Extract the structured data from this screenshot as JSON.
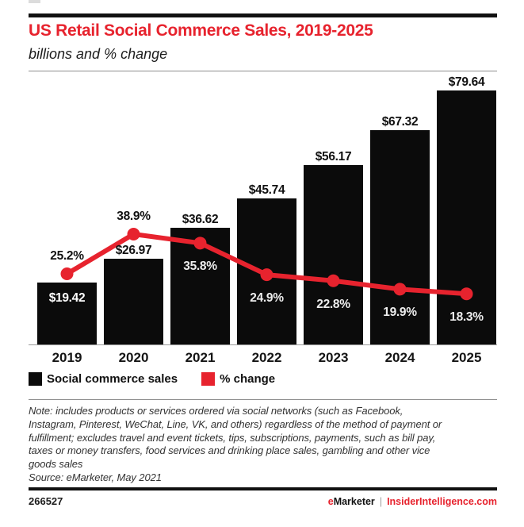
{
  "header": {
    "title": "US Retail Social Commerce Sales, 2019-2025",
    "subtitle": "billions and % change"
  },
  "chart_data": {
    "type": "bar",
    "combo": "bar+line",
    "title": "US Retail Social Commerce Sales, 2019-2025",
    "subtitle": "billions and % change",
    "categories": [
      "2019",
      "2020",
      "2021",
      "2022",
      "2023",
      "2024",
      "2025"
    ],
    "series": [
      {
        "type": "bar",
        "name": "Social commerce sales",
        "unit": "billions USD",
        "values": [
          19.42,
          26.97,
          36.62,
          45.74,
          56.17,
          67.32,
          79.64
        ],
        "labels": [
          "$19.42",
          "$26.97",
          "$36.62",
          "$45.74",
          "$56.17",
          "$67.32",
          "$79.64"
        ],
        "color": "#0b0b0b"
      },
      {
        "type": "line",
        "name": "% change",
        "unit": "percent",
        "values": [
          25.2,
          38.9,
          35.8,
          24.9,
          22.8,
          19.9,
          18.3
        ],
        "labels": [
          "25.2%",
          "38.9%",
          "35.8%",
          "24.9%",
          "22.8%",
          "19.9%",
          "18.3%"
        ],
        "color": "#e7232e"
      }
    ],
    "xlabel": "",
    "ylabel": "",
    "ylim_bars": [
      0,
      80
    ],
    "grid": false,
    "legend_position": "bottom"
  },
  "note": {
    "lines": [
      "Note: includes products or services ordered via social networks (such as Facebook,",
      "Instagram, Pinterest, WeChat, Line, VK, and others) regardless of the method of payment or",
      "fulfillment; excludes travel and event tickets, tips, subscriptions, payments, such as bill pay,",
      "taxes or money transfers, food services and drinking place sales, gambling and other vice",
      "goods sales"
    ]
  },
  "source": "Source: eMarketer, May 2021",
  "footer": {
    "id": "266527",
    "brand_prefix": "e",
    "brand_rest": "Marketer",
    "divider": "|",
    "site": "InsiderIntelligence.com"
  },
  "colors": {
    "red": "#e7232e",
    "black": "#0b0b0b"
  }
}
